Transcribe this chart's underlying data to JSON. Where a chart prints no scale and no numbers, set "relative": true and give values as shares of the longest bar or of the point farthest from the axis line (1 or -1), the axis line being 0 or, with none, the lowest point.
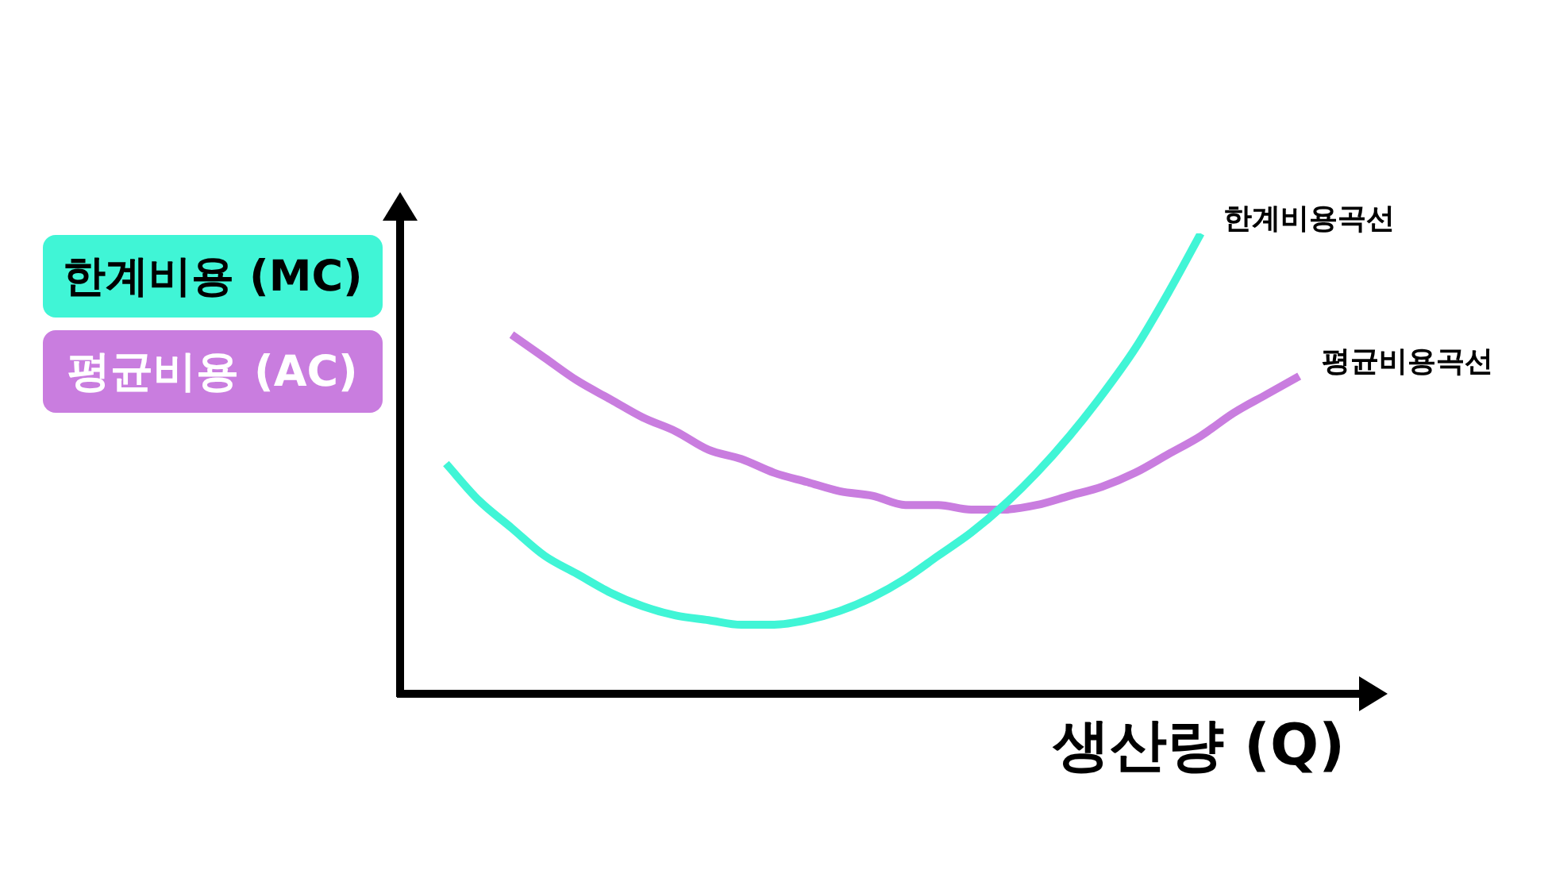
{
  "chart_data": {
    "type": "line",
    "relative": true,
    "xlabel": "생산량 (Q)",
    "legend": "left",
    "marker": "none",
    "line_style": "solid",
    "annotations": [
      "한계비용곡선",
      "평균비용곡선"
    ],
    "categories": [
      null,
      null,
      null,
      null,
      null,
      null,
      null,
      null,
      null,
      null,
      null,
      null,
      null,
      null,
      null,
      null,
      null,
      null,
      null,
      null,
      null,
      null,
      null,
      null,
      null,
      null,
      null
    ],
    "series": [
      {
        "name": "한계비용 (MC)",
        "color": "#40f5d6",
        "values": [
          0.5,
          0.42,
          0.36,
          0.3,
          0.26,
          0.22,
          0.19,
          0.17,
          0.16,
          0.15,
          0.15,
          0.16,
          0.18,
          0.21,
          0.25,
          0.3,
          0.35,
          0.41,
          0.48,
          0.56,
          0.65,
          0.75,
          0.87,
          1,
          null,
          null,
          null
        ]
      },
      {
        "name": "평균비용 (AC)",
        "color": "#c97ddf",
        "values": [
          null,
          null,
          0.78,
          0.73,
          0.68,
          0.64,
          0.6,
          0.57,
          0.53,
          0.51,
          0.48,
          0.46,
          0.44,
          0.43,
          0.41,
          0.41,
          0.4,
          0.4,
          0.41,
          0.43,
          0.45,
          0.48,
          0.52,
          0.56,
          0.61,
          0.65,
          0.69
        ]
      }
    ]
  }
}
